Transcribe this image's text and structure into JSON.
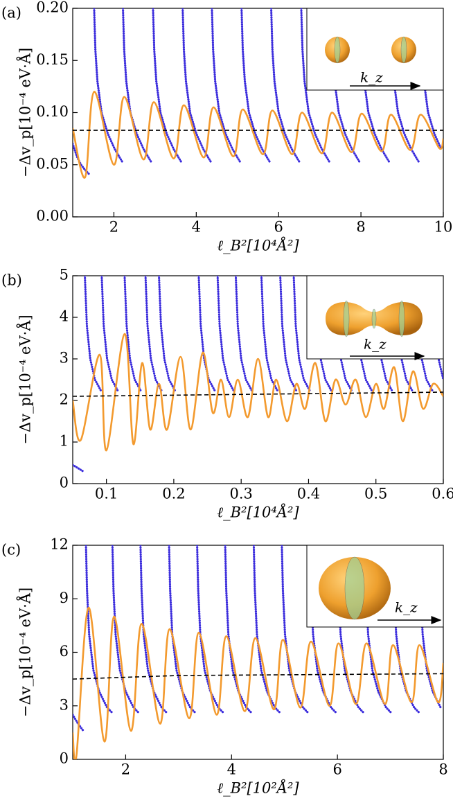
{
  "chart_data": [
    {
      "type": "line",
      "panel_label": "(a)",
      "xlabel": "ℓ_B²[10⁴Å²]",
      "ylabel": "−Δv_p[10⁻⁴ eV·Å]",
      "annotation": "k_z",
      "xlim": [
        1,
        10
      ],
      "ylim": [
        0,
        0.2
      ],
      "xticks": [
        2,
        4,
        6,
        8,
        10
      ],
      "yticks": [
        {
          "value": 0,
          "label": "0.00"
        },
        {
          "value": 0.05,
          "label": "0.05"
        },
        {
          "value": 0.1,
          "label": "0.10"
        },
        {
          "value": 0.15,
          "label": "0.15"
        },
        {
          "value": 0.2,
          "label": "0.20"
        }
      ],
      "series": [
        {
          "color": "#3a2bdc",
          "style": "dotted",
          "x": [
            1.0,
            1.1,
            1.2,
            1.3,
            1.42,
            null,
            1.52,
            1.55,
            1.6,
            1.7,
            1.85,
            2.02,
            2.2,
            null,
            2.22,
            2.25,
            2.3,
            2.4,
            2.55,
            2.72,
            2.9,
            null,
            2.95,
            2.98,
            3.03,
            3.13,
            3.28,
            3.45,
            3.63,
            null,
            3.67,
            3.7,
            3.75,
            3.85,
            4.0,
            4.17,
            4.35,
            null,
            4.38,
            4.41,
            4.46,
            4.56,
            4.71,
            4.88,
            5.06,
            null,
            5.1,
            5.13,
            5.18,
            5.28,
            5.43,
            5.6,
            5.78,
            null,
            5.82,
            5.85,
            5.9,
            6.0,
            6.15,
            6.32,
            6.5,
            null,
            6.55,
            6.58,
            6.63,
            6.73,
            6.88,
            7.05,
            7.23,
            null,
            7.28,
            7.31,
            7.36,
            7.46,
            7.61,
            7.78,
            7.96,
            null,
            8.0,
            8.03,
            8.08,
            8.18,
            8.33,
            8.5,
            8.68,
            null,
            8.72,
            8.75,
            8.8,
            8.9,
            9.05,
            9.22,
            9.4,
            null,
            9.45,
            9.48,
            9.53,
            9.63,
            9.78,
            9.95
          ],
          "values": [
            0.07,
            0.058,
            0.05,
            0.045,
            0.04,
            null,
            0.2,
            0.16,
            0.13,
            0.1,
            0.08,
            0.065,
            0.053,
            null,
            0.2,
            0.16,
            0.13,
            0.1,
            0.08,
            0.065,
            0.053,
            null,
            0.2,
            0.16,
            0.13,
            0.1,
            0.08,
            0.065,
            0.053,
            null,
            0.2,
            0.16,
            0.13,
            0.1,
            0.08,
            0.065,
            0.053,
            null,
            0.2,
            0.16,
            0.13,
            0.1,
            0.08,
            0.065,
            0.053,
            null,
            0.2,
            0.16,
            0.13,
            0.1,
            0.08,
            0.065,
            0.053,
            null,
            0.2,
            0.16,
            0.13,
            0.1,
            0.08,
            0.065,
            0.053,
            null,
            0.2,
            0.16,
            0.13,
            0.1,
            0.08,
            0.065,
            0.053,
            null,
            0.2,
            0.16,
            0.13,
            0.1,
            0.08,
            0.065,
            0.053,
            null,
            0.2,
            0.16,
            0.13,
            0.1,
            0.08,
            0.065,
            0.053,
            null,
            0.2,
            0.16,
            0.13,
            0.1,
            0.08,
            0.065,
            0.053,
            null,
            0.2,
            0.16,
            0.13,
            0.1,
            0.08,
            0.065
          ]
        },
        {
          "color": "#f39a2e",
          "style": "solid",
          "x": [
            1.0,
            1.3,
            1.52,
            2.0,
            2.25,
            2.72,
            2.97,
            3.45,
            3.7,
            4.18,
            4.42,
            4.9,
            5.13,
            5.62,
            5.85,
            6.33,
            6.57,
            7.05,
            7.3,
            7.77,
            8.02,
            8.5,
            8.73,
            9.2,
            9.45,
            9.9,
            10.0
          ],
          "values": [
            0.085,
            0.038,
            0.12,
            0.05,
            0.115,
            0.055,
            0.11,
            0.056,
            0.107,
            0.057,
            0.105,
            0.058,
            0.103,
            0.06,
            0.102,
            0.06,
            0.1,
            0.061,
            0.1,
            0.062,
            0.099,
            0.063,
            0.098,
            0.064,
            0.098,
            0.066,
            0.075
          ]
        },
        {
          "color": "#000000",
          "style": "dashed",
          "x": [
            1,
            10
          ],
          "values": [
            0.083,
            0.083
          ]
        }
      ]
    },
    {
      "type": "line",
      "panel_label": "(b)",
      "xlabel": "ℓ_B²[10⁴Å²]",
      "ylabel": "−Δv_p[10⁻⁴ eV·Å]",
      "annotation": "k_z",
      "xlim": [
        0.05,
        0.6
      ],
      "ylim": [
        0,
        5
      ],
      "xticks": [
        0.1,
        0.2,
        0.3,
        0.4,
        0.5,
        0.6
      ],
      "yticks": [
        0,
        1,
        2,
        3,
        4,
        5
      ],
      "series": [
        {
          "color": "#3a2bdc",
          "style": "dotted",
          "x": [
            0.05,
            0.057,
            0.065,
            null,
            0.068,
            0.071,
            0.076,
            0.083,
            0.093,
            null,
            0.093,
            0.096,
            0.101,
            0.108,
            0.118,
            null,
            0.127,
            0.13,
            0.135,
            0.142,
            0.152,
            null,
            0.158,
            0.161,
            0.166,
            0.173,
            0.183,
            null,
            0.178,
            0.181,
            0.186,
            0.193,
            0.203,
            null,
            0.237,
            0.24,
            0.245,
            0.252,
            0.262,
            null,
            0.265,
            0.268,
            0.273,
            0.28,
            0.29,
            null,
            0.292,
            0.295,
            0.3,
            0.307,
            0.317,
            null,
            0.33,
            0.333,
            0.338,
            0.345,
            0.355,
            null,
            0.358,
            0.361,
            0.366,
            0.373,
            0.383,
            null,
            0.378,
            0.381,
            0.386,
            0.393,
            0.403,
            null,
            0.41,
            0.413,
            0.418,
            0.425,
            0.435,
            null,
            0.44,
            0.443,
            0.448,
            0.455,
            0.465,
            null,
            0.47,
            0.473,
            0.478,
            0.485,
            0.495,
            null,
            0.5,
            0.503,
            0.508,
            0.515,
            0.525,
            null,
            0.53,
            0.533,
            0.538,
            0.545,
            0.555,
            null,
            0.56,
            0.563,
            0.568,
            0.575,
            0.585,
            null,
            0.585,
            0.588,
            0.593,
            0.6
          ],
          "values": [
            0.45,
            0.38,
            0.3,
            null,
            5,
            3.8,
            3.0,
            2.5,
            2.2,
            null,
            5,
            3.8,
            3.0,
            2.5,
            2.2,
            null,
            5,
            3.8,
            3.0,
            2.5,
            2.2,
            null,
            5,
            3.8,
            3.0,
            2.5,
            2.2,
            null,
            5,
            3.8,
            3.0,
            2.5,
            2.2,
            null,
            5,
            3.8,
            3.0,
            2.5,
            2.2,
            null,
            5,
            3.8,
            3.0,
            2.5,
            2.2,
            null,
            5,
            3.8,
            3.0,
            2.5,
            2.2,
            null,
            5,
            3.8,
            3.0,
            2.5,
            2.2,
            null,
            5,
            3.8,
            3.0,
            2.5,
            2.2,
            null,
            5,
            3.8,
            3.0,
            2.5,
            2.2,
            null,
            5,
            3.8,
            3.0,
            2.5,
            2.2,
            null,
            5,
            3.8,
            3.0,
            2.5,
            2.2,
            null,
            5,
            3.8,
            3.0,
            2.5,
            2.2,
            null,
            5,
            3.8,
            3.0,
            2.5,
            2.2,
            null,
            5,
            3.8,
            3.0,
            2.5,
            2.2,
            null,
            5,
            3.8,
            3.0,
            2.5,
            2.2,
            null,
            5,
            3.8,
            3.0,
            2.5
          ]
        },
        {
          "color": "#f39a2e",
          "style": "solid",
          "x": [
            0.05,
            0.062,
            0.09,
            0.1,
            0.127,
            0.14,
            0.153,
            0.165,
            0.178,
            0.19,
            0.21,
            0.225,
            0.243,
            0.258,
            0.27,
            0.282,
            0.295,
            0.31,
            0.325,
            0.34,
            0.352,
            0.368,
            0.382,
            0.395,
            0.41,
            0.425,
            0.44,
            0.455,
            0.47,
            0.485,
            0.5,
            0.512,
            0.527,
            0.54,
            0.555,
            0.57,
            0.585,
            0.6
          ],
          "values": [
            2.0,
            1.05,
            3.1,
            0.8,
            3.6,
            0.95,
            2.9,
            1.3,
            2.4,
            1.3,
            3.05,
            1.3,
            3.15,
            1.7,
            2.5,
            1.6,
            2.5,
            1.6,
            3.0,
            1.6,
            2.5,
            1.5,
            2.4,
            1.8,
            2.9,
            1.5,
            2.5,
            1.9,
            2.5,
            1.6,
            2.4,
            1.8,
            2.8,
            1.5,
            2.7,
            1.8,
            2.4,
            2.1
          ]
        },
        {
          "color": "#000000",
          "style": "dashed",
          "x": [
            0.05,
            0.6
          ],
          "values": [
            2.1,
            2.2
          ]
        }
      ]
    },
    {
      "type": "line",
      "panel_label": "(c)",
      "xlabel": "ℓ_B²[10²Å²]",
      "ylabel": "−Δv_p[10⁻⁴ eV·Å]",
      "annotation": "k_z",
      "xlim": [
        1,
        8
      ],
      "ylim": [
        0,
        12
      ],
      "xticks": [
        2,
        4,
        6,
        8
      ],
      "yticks": [
        0,
        3,
        6,
        9,
        12
      ],
      "series": [
        {
          "color": "#3a2bdc",
          "style": "dotted",
          "x": [
            1.0,
            1.1,
            1.2,
            null,
            1.25,
            1.27,
            1.31,
            1.39,
            1.5,
            1.65,
            1.75,
            null,
            1.75,
            1.77,
            1.81,
            1.89,
            2.0,
            2.15,
            2.25,
            null,
            2.28,
            2.3,
            2.34,
            2.42,
            2.53,
            2.68,
            2.78,
            null,
            2.82,
            2.84,
            2.88,
            2.96,
            3.07,
            3.22,
            3.32,
            null,
            3.35,
            3.37,
            3.41,
            3.49,
            3.6,
            3.75,
            3.85,
            null,
            3.88,
            3.9,
            3.94,
            4.02,
            4.13,
            4.28,
            4.38,
            null,
            4.42,
            4.44,
            4.48,
            4.56,
            4.67,
            4.82,
            4.92,
            null,
            4.95,
            4.97,
            5.01,
            5.09,
            5.2,
            5.35,
            5.45,
            null,
            5.48,
            5.5,
            5.54,
            5.62,
            5.73,
            5.88,
            5.98,
            null,
            6.0,
            6.02,
            6.06,
            6.14,
            6.25,
            6.4,
            6.5,
            null,
            6.52,
            6.54,
            6.58,
            6.66,
            6.77,
            6.92,
            7.02,
            null,
            7.05,
            7.07,
            7.11,
            7.19,
            7.3,
            7.45,
            7.55,
            null,
            7.55,
            7.57,
            7.61,
            7.69,
            7.8,
            7.95
          ],
          "values": [
            2.5,
            2.0,
            1.6,
            null,
            12,
            9.5,
            7,
            5,
            3.8,
            2.9,
            2.6,
            null,
            12,
            9.5,
            7,
            5,
            3.8,
            2.9,
            2.6,
            null,
            12,
            9.5,
            7,
            5,
            3.8,
            2.9,
            2.6,
            null,
            12,
            9.5,
            7,
            5,
            3.8,
            2.9,
            2.6,
            null,
            12,
            9.5,
            7,
            5,
            3.8,
            2.9,
            2.6,
            null,
            12,
            9.5,
            7,
            5,
            3.8,
            2.9,
            2.6,
            null,
            12,
            9.5,
            7,
            5,
            3.8,
            2.9,
            2.6,
            null,
            12,
            9.5,
            7,
            5,
            3.8,
            2.9,
            2.6,
            null,
            12,
            9.5,
            7,
            5,
            3.8,
            2.9,
            2.6,
            null,
            12,
            9.5,
            7,
            5,
            3.8,
            2.9,
            2.6,
            null,
            12,
            9.5,
            7,
            5,
            3.8,
            2.9,
            2.6,
            null,
            12,
            9.5,
            7,
            5,
            3.8,
            2.9,
            2.6,
            null,
            12,
            9.5,
            7,
            5,
            3.8,
            2.9
          ]
        },
        {
          "color": "#f39a2e",
          "style": "solid",
          "x": [
            1.0,
            1.07,
            1.3,
            1.6,
            1.78,
            2.1,
            2.3,
            2.65,
            2.83,
            3.2,
            3.38,
            3.72,
            3.9,
            4.25,
            4.45,
            4.8,
            4.97,
            5.3,
            5.5,
            5.85,
            6.02,
            6.35,
            6.55,
            6.9,
            7.05,
            7.4,
            7.55,
            7.9,
            8.0
          ],
          "values": [
            1.5,
            0.2,
            8.5,
            1.0,
            8.0,
            1.6,
            7.6,
            2.0,
            7.3,
            2.3,
            7.1,
            2.5,
            6.9,
            2.7,
            6.8,
            2.8,
            6.7,
            2.9,
            6.6,
            3.0,
            6.5,
            3.1,
            6.5,
            3.1,
            6.4,
            3.2,
            6.4,
            3.2,
            5.4
          ]
        },
        {
          "color": "#000000",
          "style": "dashed",
          "x": [
            1,
            3,
            8
          ],
          "values": [
            4.5,
            4.7,
            4.8
          ]
        }
      ]
    }
  ]
}
